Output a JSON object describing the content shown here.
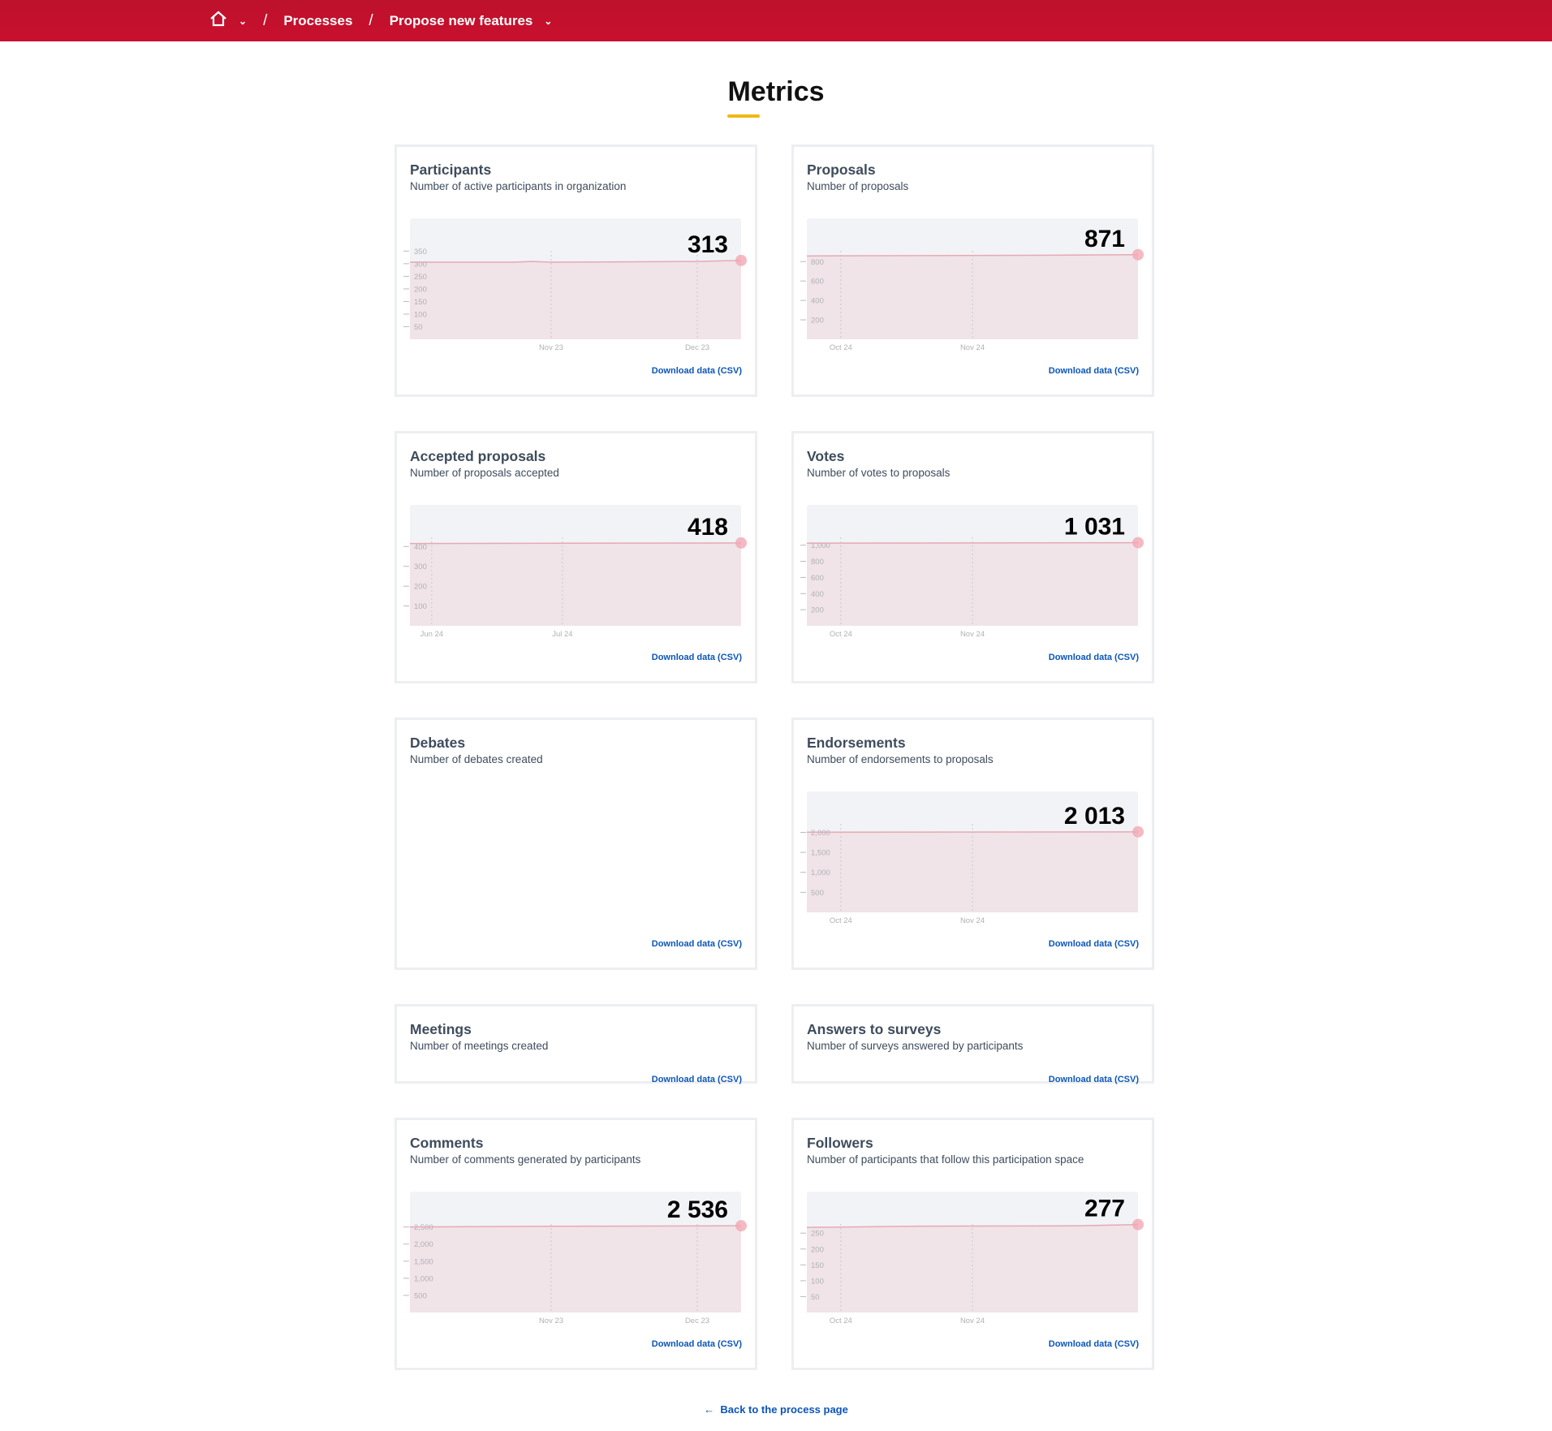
{
  "header": {
    "breadcrumb": [
      {
        "label": "Processes"
      },
      {
        "label": "Propose new features"
      }
    ],
    "icons": [
      "home-icon",
      "chevron-down-icon"
    ],
    "color": "#c8102e"
  },
  "page_title": "Metrics",
  "download_label": "Download data (CSV)",
  "back_link": "Back to the process page",
  "chart_data": [
    {
      "type": "area",
      "title": "Participants",
      "subtitle": "Number of active participants in organization",
      "value_label": "313",
      "yticks": [
        50,
        100,
        150,
        200,
        250,
        300,
        350
      ],
      "ylim": [
        0,
        480
      ],
      "xticks": [
        {
          "label": "Nov 23",
          "date": "2023-11-01"
        },
        {
          "label": "Dec 23",
          "date": "2023-12-01"
        }
      ],
      "xlim": [
        "2023-10-03",
        "2023-12-10"
      ],
      "points": [
        [
          "2023-10-03",
          306
        ],
        [
          "2023-10-24",
          306
        ],
        [
          "2023-10-28",
          309
        ],
        [
          "2023-11-01",
          306
        ],
        [
          "2023-12-01",
          309
        ],
        [
          "2023-12-10",
          313
        ]
      ]
    },
    {
      "type": "area",
      "title": "Proposals",
      "subtitle": "Number of proposals",
      "value_label": "871",
      "yticks": [
        200,
        400,
        600,
        800
      ],
      "ylim": [
        0,
        1245
      ],
      "xticks": [
        {
          "label": "Oct 24",
          "date": "2024-10-01"
        },
        {
          "label": "Nov 24",
          "date": "2024-11-01"
        }
      ],
      "xlim": [
        "2024-09-23",
        "2024-12-10"
      ],
      "points": [
        [
          "2024-09-23",
          858
        ],
        [
          "2024-11-20",
          866
        ],
        [
          "2024-12-10",
          871
        ]
      ]
    },
    {
      "type": "area",
      "title": "Accepted proposals",
      "subtitle": "Number of proposals accepted",
      "value_label": "418",
      "yticks": [
        100,
        200,
        300,
        400
      ],
      "ylim": [
        0,
        610
      ],
      "xticks": [
        {
          "label": "Jun 24",
          "date": "2024-06-01"
        },
        {
          "label": "Jul 24",
          "date": "2024-07-01"
        }
      ],
      "xlim": [
        "2024-05-27",
        "2024-08-11"
      ],
      "points": [
        [
          "2024-05-27",
          415
        ],
        [
          "2024-08-11",
          418
        ]
      ]
    },
    {
      "type": "area",
      "title": "Votes",
      "subtitle": "Number of votes to proposals",
      "value_label": "1 031",
      "yticks": [
        200,
        400,
        600,
        800,
        1000
      ],
      "ylim": [
        0,
        1500
      ],
      "xticks": [
        {
          "label": "Oct 24",
          "date": "2024-10-01"
        },
        {
          "label": "Nov 24",
          "date": "2024-11-01"
        }
      ],
      "xlim": [
        "2024-09-23",
        "2024-12-10"
      ],
      "points": [
        [
          "2024-09-23",
          1025
        ],
        [
          "2024-12-10",
          1031
        ]
      ]
    },
    {
      "type": "none",
      "title": "Debates",
      "subtitle": "Number of debates created"
    },
    {
      "type": "area",
      "title": "Endorsements",
      "subtitle": "Number of endorsements to proposals",
      "value_label": "2 013",
      "yticks": [
        500,
        1000,
        1500,
        2000
      ],
      "ylim": [
        0,
        3025
      ],
      "xticks": [
        {
          "label": "Oct 24",
          "date": "2024-10-01"
        },
        {
          "label": "Nov 24",
          "date": "2024-11-01"
        }
      ],
      "xlim": [
        "2024-09-23",
        "2024-12-10"
      ],
      "points": [
        [
          "2024-09-23",
          2005
        ],
        [
          "2024-12-10",
          2013
        ]
      ]
    },
    {
      "type": "none",
      "title": "Meetings",
      "subtitle": "Number of meetings created"
    },
    {
      "type": "none",
      "title": "Answers to surveys",
      "subtitle": "Number of surveys answered by participants"
    },
    {
      "type": "area",
      "title": "Comments",
      "subtitle": "Number of comments generated by participants",
      "value_label": "2 536",
      "yticks": [
        500,
        1000,
        1500,
        2000,
        2500
      ],
      "ylim": [
        0,
        3536
      ],
      "xticks": [
        {
          "label": "Nov 23",
          "date": "2023-11-01"
        },
        {
          "label": "Dec 23",
          "date": "2023-12-01"
        }
      ],
      "xlim": [
        "2023-10-03",
        "2023-12-10"
      ],
      "points": [
        [
          "2023-10-03",
          2500
        ],
        [
          "2023-11-01",
          2520
        ],
        [
          "2023-12-10",
          2536
        ]
      ]
    },
    {
      "type": "area",
      "title": "Followers",
      "subtitle": "Number of participants that follow this participation space",
      "value_label": "277",
      "yticks": [
        50,
        100,
        150,
        200,
        250
      ],
      "ylim": [
        0,
        381
      ],
      "xticks": [
        {
          "label": "Oct 24",
          "date": "2024-10-01"
        },
        {
          "label": "Nov 24",
          "date": "2024-11-01"
        }
      ],
      "xlim": [
        "2024-09-23",
        "2024-12-10"
      ],
      "points": [
        [
          "2024-09-23",
          268
        ],
        [
          "2024-10-20",
          272
        ],
        [
          "2024-11-25",
          273
        ],
        [
          "2024-12-10",
          277
        ]
      ]
    }
  ]
}
